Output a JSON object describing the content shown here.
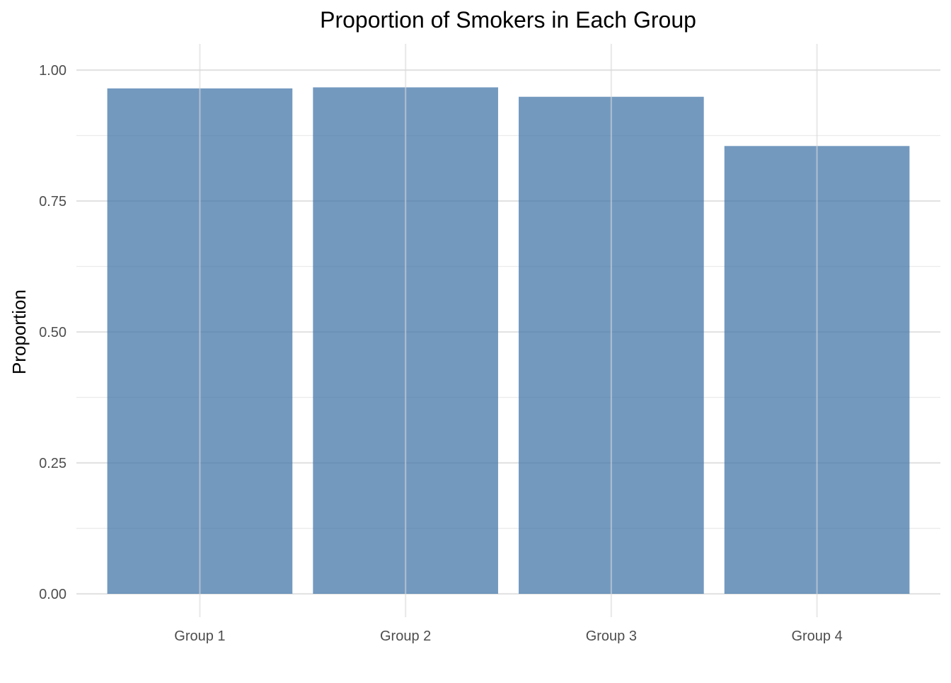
{
  "chart_data": {
    "type": "bar",
    "title": "Proportion of Smokers in Each Group",
    "xlabel": "",
    "ylabel": "Proportion",
    "categories": [
      "Group 1",
      "Group 2",
      "Group 3",
      "Group 4"
    ],
    "values": [
      0.965,
      0.967,
      0.949,
      0.855
    ],
    "ylim": [
      0,
      1.0
    ],
    "yticks": [
      0.0,
      0.25,
      0.5,
      0.75,
      1.0
    ],
    "ytick_labels": [
      "0.00",
      "0.25",
      "0.50",
      "0.75",
      "1.00"
    ],
    "grid": true,
    "legend": "none",
    "bar_color": "#4477aa",
    "bar_opacity": 0.75
  }
}
